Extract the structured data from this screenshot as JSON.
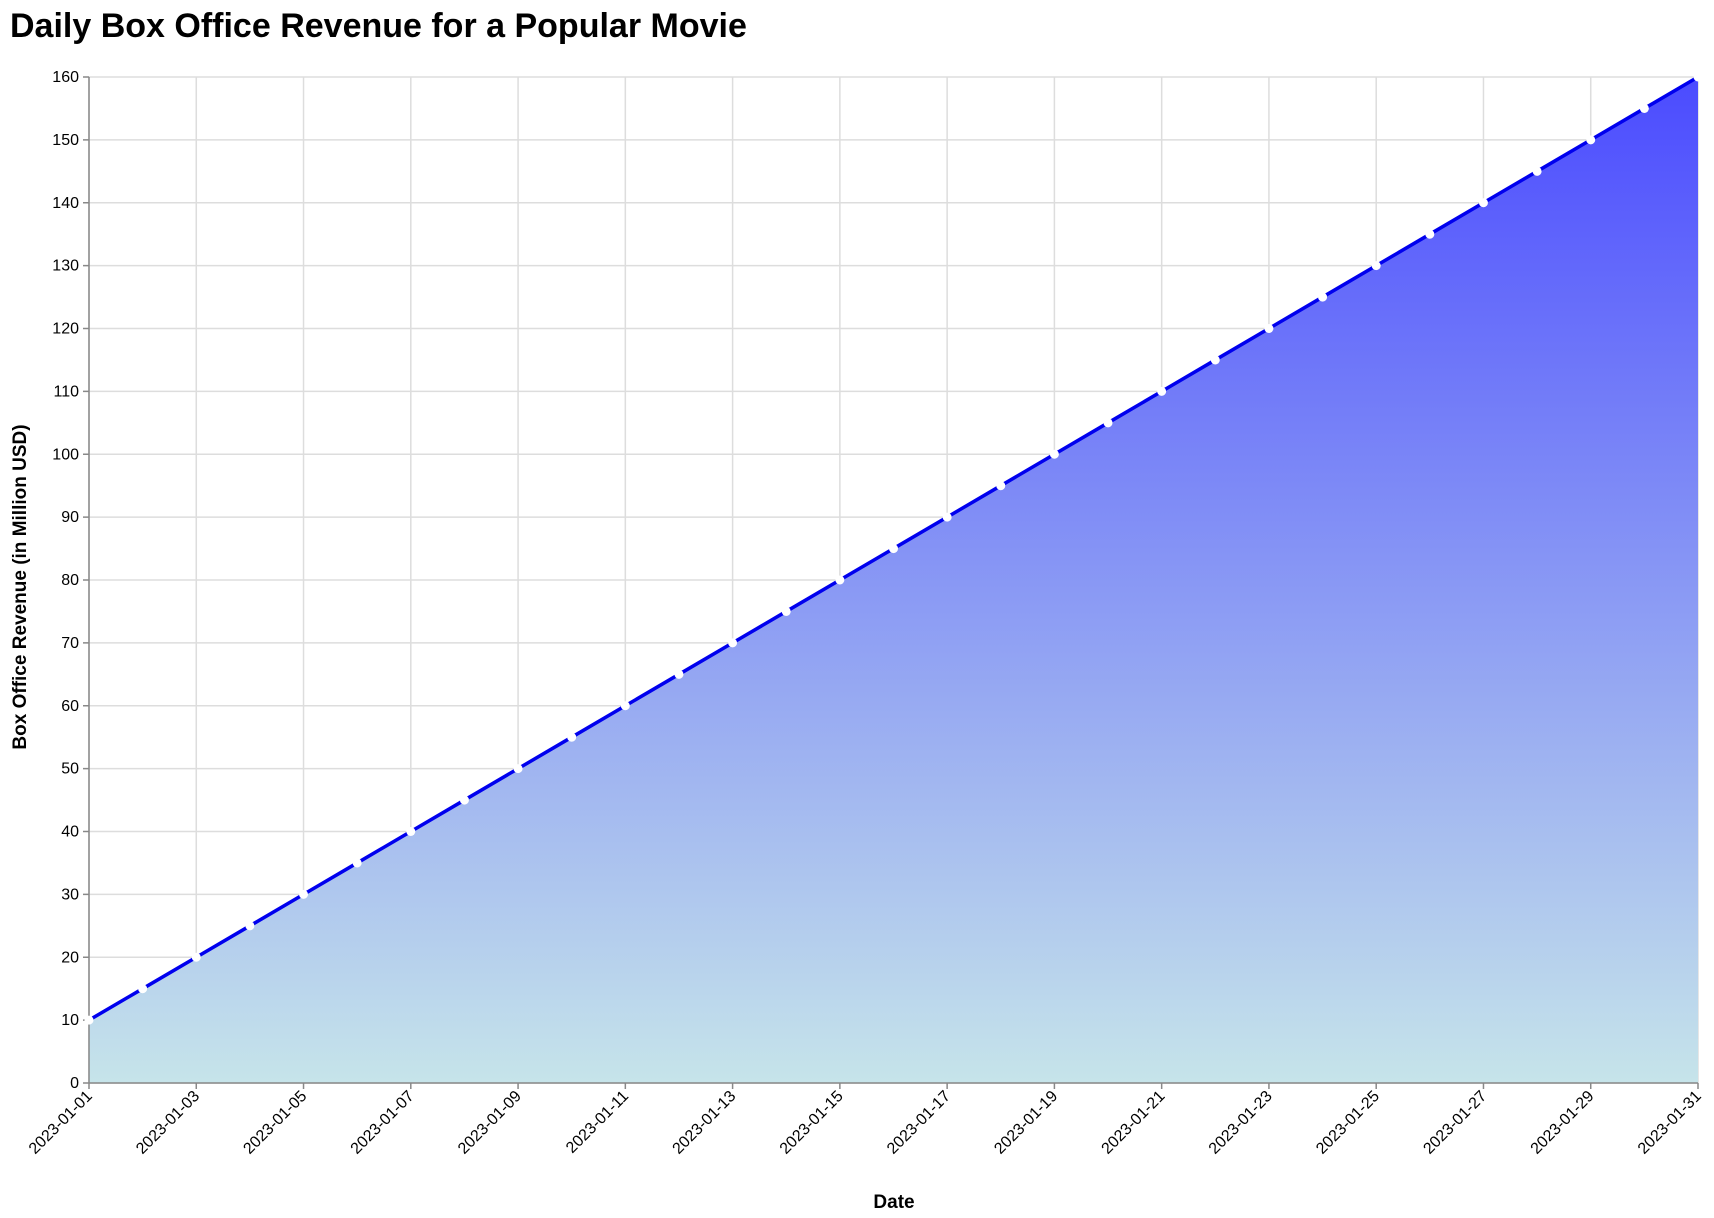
{
  "chart_data": {
    "type": "area",
    "title": "Daily Box Office Revenue for a Popular Movie",
    "xlabel": "Date",
    "ylabel": "Box Office Revenue (in Million USD)",
    "x": [
      "2023-01-01",
      "2023-01-02",
      "2023-01-03",
      "2023-01-04",
      "2023-01-05",
      "2023-01-06",
      "2023-01-07",
      "2023-01-08",
      "2023-01-09",
      "2023-01-10",
      "2023-01-11",
      "2023-01-12",
      "2023-01-13",
      "2023-01-14",
      "2023-01-15",
      "2023-01-16",
      "2023-01-17",
      "2023-01-18",
      "2023-01-19",
      "2023-01-20",
      "2023-01-21",
      "2023-01-22",
      "2023-01-23",
      "2023-01-24",
      "2023-01-25",
      "2023-01-26",
      "2023-01-27",
      "2023-01-28",
      "2023-01-29",
      "2023-01-30",
      "2023-01-31"
    ],
    "values": [
      10,
      15,
      20,
      25,
      30,
      35,
      40,
      45,
      50,
      55,
      60,
      65,
      70,
      75,
      80,
      85,
      90,
      95,
      100,
      105,
      110,
      115,
      120,
      125,
      130,
      135,
      140,
      145,
      150,
      155,
      160
    ],
    "xticks": [
      "2023-01-01",
      "2023-01-03",
      "2023-01-05",
      "2023-01-07",
      "2023-01-09",
      "2023-01-11",
      "2023-01-13",
      "2023-01-15",
      "2023-01-17",
      "2023-01-19",
      "2023-01-21",
      "2023-01-23",
      "2023-01-25",
      "2023-01-27",
      "2023-01-29",
      "2023-01-31"
    ],
    "yticks": [
      0,
      10,
      20,
      30,
      40,
      50,
      60,
      70,
      80,
      90,
      100,
      110,
      120,
      130,
      140,
      150,
      160
    ],
    "ylim": [
      0,
      160
    ],
    "grid": true,
    "colors": {
      "line": "#0000ee",
      "area_top": "#4b4bff",
      "area_bottom": "#c6e4ea",
      "point": "#ffffff"
    }
  }
}
